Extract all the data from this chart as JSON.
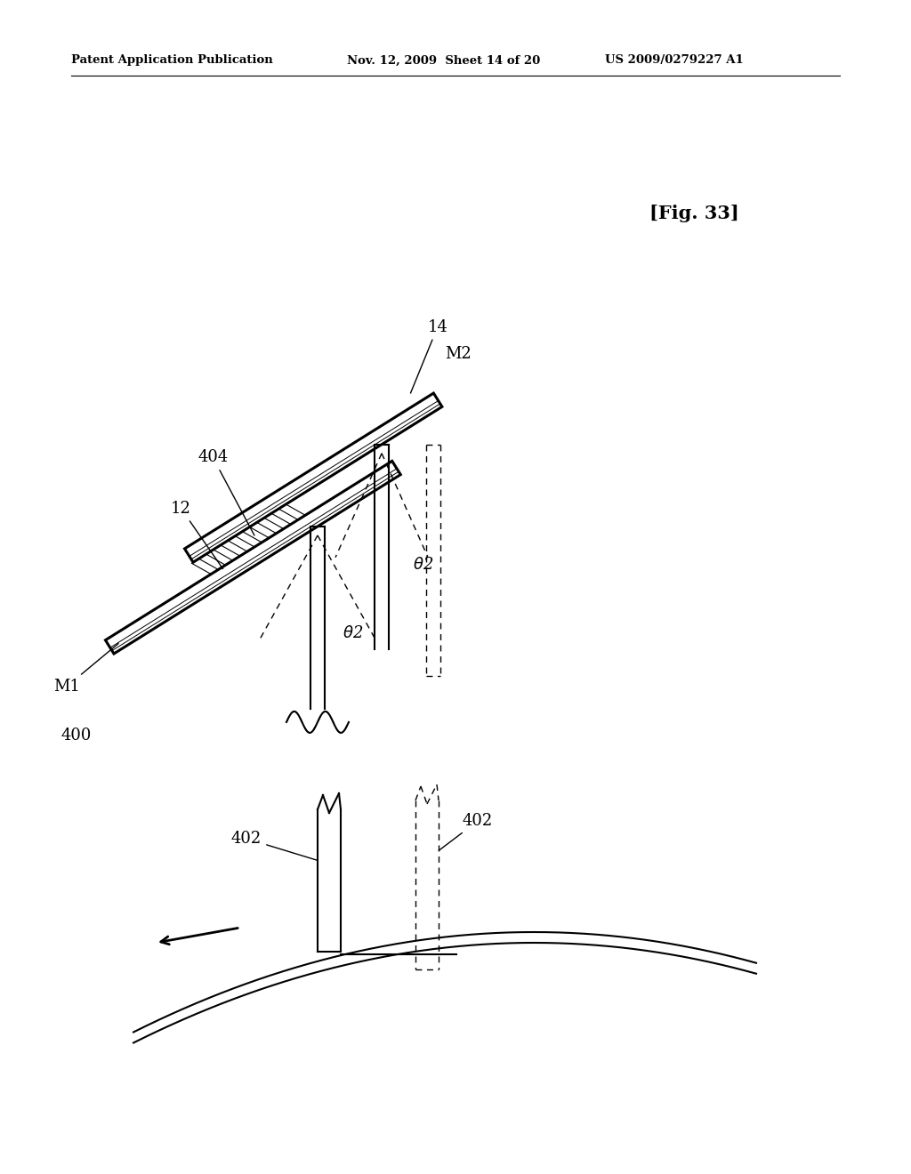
{
  "bg_color": "#ffffff",
  "header_left": "Patent Application Publication",
  "header_mid": "Nov. 12, 2009  Sheet 14 of 20",
  "header_right": "US 2009/0279227 A1",
  "fig_label": "[Fig. 33]"
}
